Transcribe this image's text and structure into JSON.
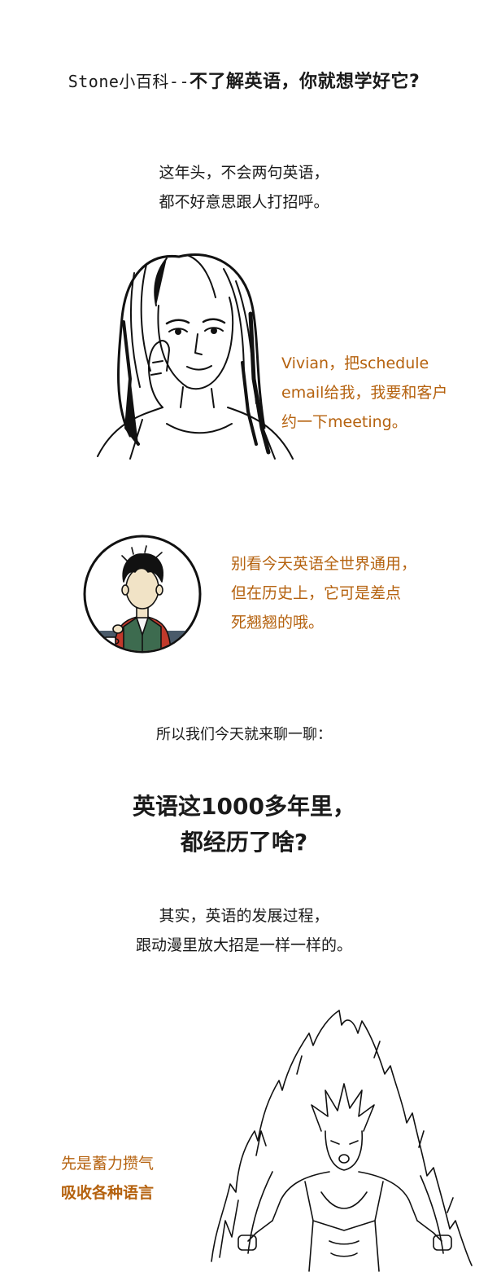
{
  "header": {
    "title_light": "Stone小百科--",
    "title_bold": "不了解英语，你就想学好它?"
  },
  "intro": {
    "line1": "这年头，不会两句英语，",
    "line2": "都不好意思跟人打招呼。"
  },
  "woman_speech": {
    "line1": "Vivian，把schedule",
    "line2": "email给我，我要和客户",
    "line3": "约一下meeting。"
  },
  "narrator_speech": {
    "line1": "别看今天英语全世界通用，",
    "line2": "但在历史上，它可是差点",
    "line3": "死翘翘的哦。"
  },
  "lead_in": "所以我们今天就来聊一聊：",
  "headline": {
    "line1": "英语这1000多年里，",
    "line2": "都经历了啥?"
  },
  "explain": {
    "line1": "其实，英语的发展过程，",
    "line2": "跟动漫里放大招是一样一样的。"
  },
  "caption": {
    "line1": "先是蓄力攒气",
    "line2": "吸收各种语言"
  },
  "colors": {
    "accent_orange": "#b5620f",
    "text_dark": "#1a1a1a",
    "sweater_red": "#c0392b",
    "vest_green": "#3d6b4f"
  },
  "icons": {
    "woman": "woman-on-phone-illustration",
    "narrator": "narrator-avatar",
    "fighter": "powering-up-fighter-illustration"
  }
}
